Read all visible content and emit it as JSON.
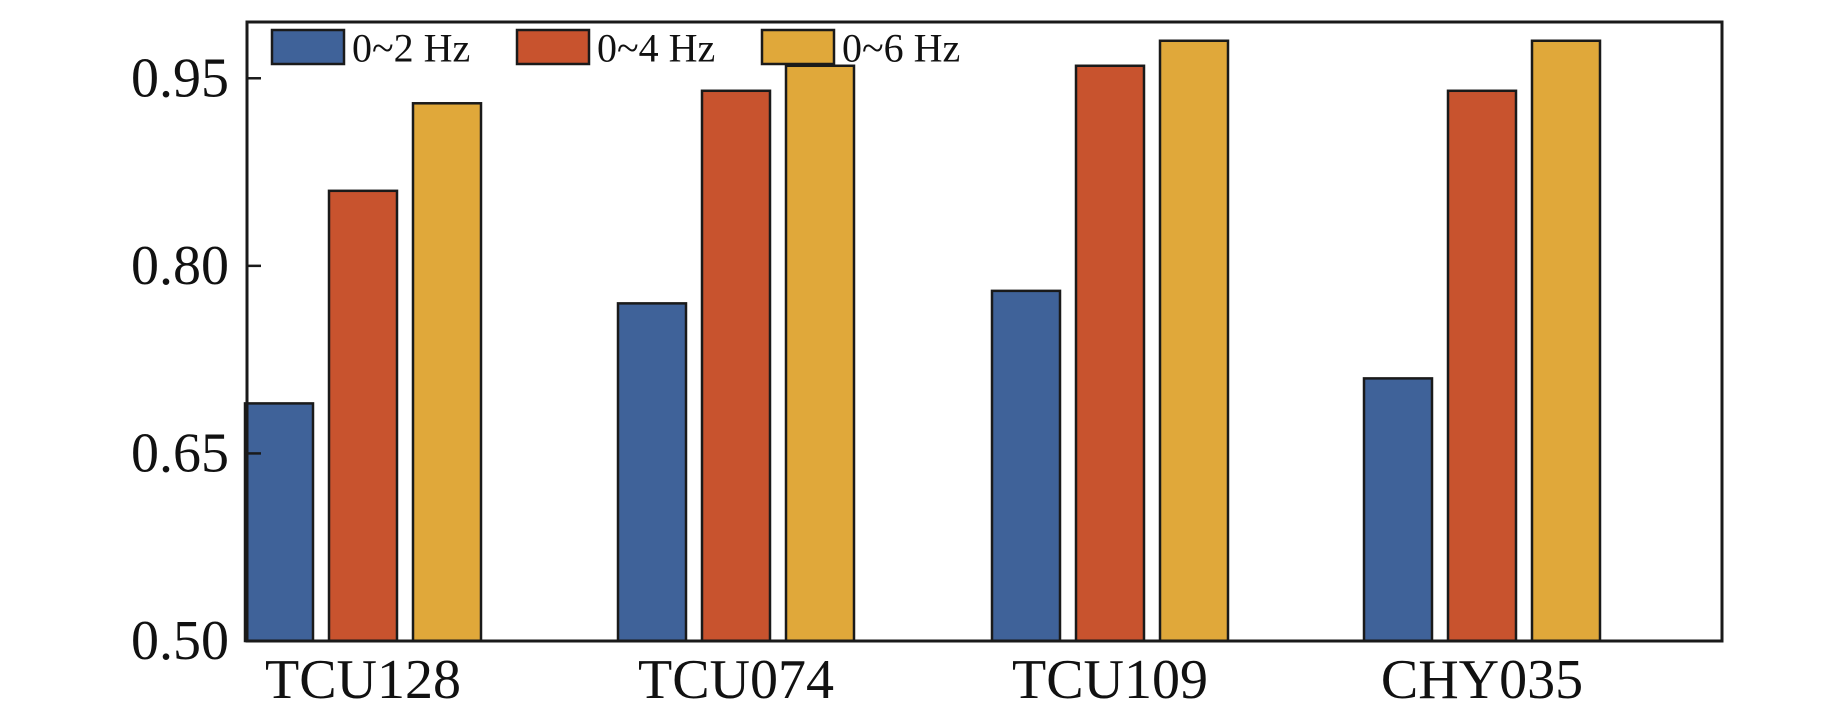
{
  "chart_data": {
    "type": "bar",
    "title": "",
    "xlabel": "",
    "ylabel": "",
    "categories": [
      "TCU128",
      "TCU074",
      "TCU109",
      "CHY035"
    ],
    "series": [
      {
        "name": "0~2 Hz",
        "color": "#3f6299",
        "values": [
          0.69,
          0.77,
          0.78,
          0.71
        ]
      },
      {
        "name": "0~4 Hz",
        "color": "#c8532e",
        "values": [
          0.86,
          0.94,
          0.96,
          0.94
        ]
      },
      {
        "name": "0~6 Hz",
        "color": "#e0a83a",
        "values": [
          0.93,
          0.96,
          0.98,
          0.98
        ]
      }
    ],
    "ylim": [
      0.5,
      0.995
    ],
    "yticks": [
      0.5,
      0.65,
      0.8,
      0.95
    ],
    "ytick_labels": [
      "0.50",
      "0.65",
      "0.80",
      "0.95"
    ],
    "grid": false,
    "legend_position": "top-left"
  }
}
